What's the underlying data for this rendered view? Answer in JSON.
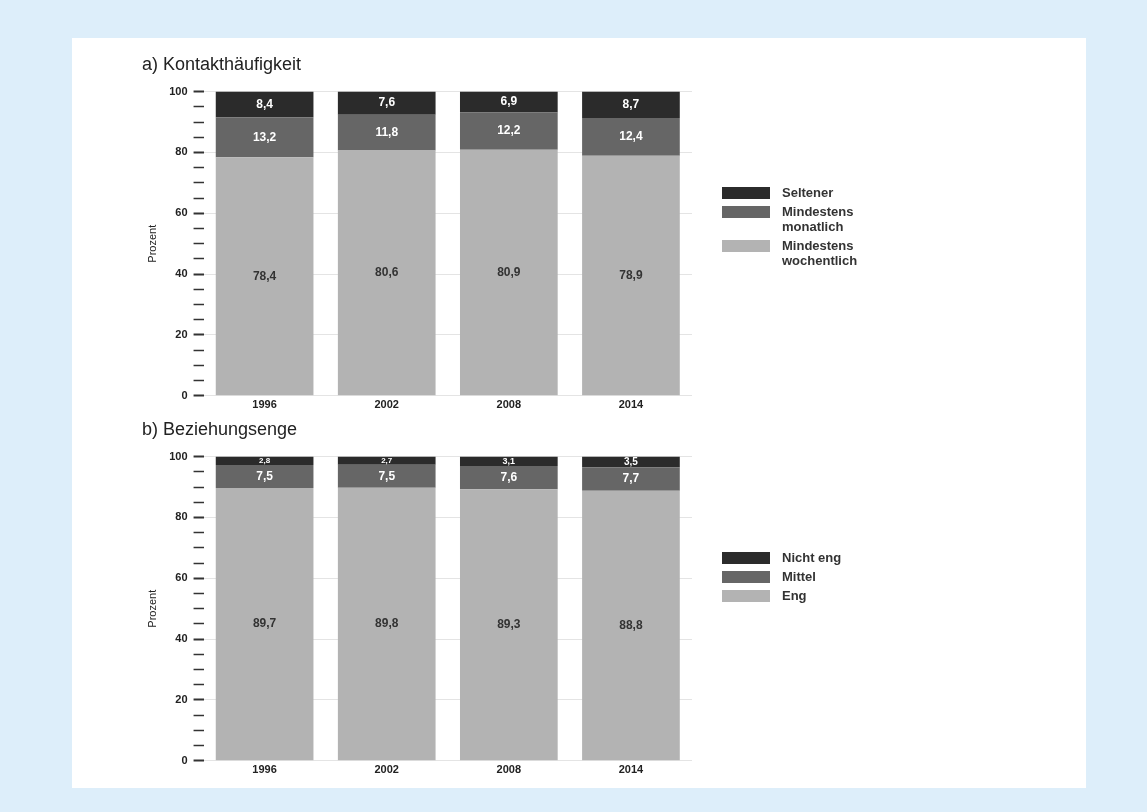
{
  "chart_data": [
    {
      "type": "bar",
      "title": "a) Kontakthäufigkeit",
      "ylabel": "Prozent",
      "categories": [
        "1996",
        "2002",
        "2008",
        "2014"
      ],
      "stacked": true,
      "legend": "right",
      "grid": "y",
      "ylim": [
        0,
        100
      ],
      "yticks": [
        0,
        {
          "value": 5,
          "label": null
        },
        {
          "value": 10,
          "label": null
        },
        {
          "value": 15,
          "label": null
        },
        20,
        {
          "value": 25,
          "label": null
        },
        {
          "value": 30,
          "label": null
        },
        {
          "value": 35,
          "label": null
        },
        40,
        {
          "value": 45,
          "label": null
        },
        {
          "value": 50,
          "label": null
        },
        {
          "value": 55,
          "label": null
        },
        60,
        {
          "value": 65,
          "label": null
        },
        {
          "value": 70,
          "label": null
        },
        {
          "value": 75,
          "label": null
        },
        80,
        {
          "value": 85,
          "label": null
        },
        {
          "value": 90,
          "label": null
        },
        {
          "value": 95,
          "label": null
        },
        100
      ],
      "series": [
        {
          "name": "Mindestens wochentlich",
          "color": "#b3b3b3",
          "values": [
            78.4,
            80.6,
            80.9,
            78.9
          ],
          "value_labels": [
            "78,4",
            "80,6",
            "80,9",
            "78,9"
          ]
        },
        {
          "name": "Mindestens monatlich",
          "color": "#666666",
          "values": [
            13.2,
            11.8,
            12.2,
            12.4
          ],
          "value_labels": [
            "13,2",
            "11,8",
            "12,2",
            "12,4"
          ]
        },
        {
          "name": "Seltener",
          "color": "#2b2b2b",
          "values": [
            8.4,
            7.6,
            6.9,
            8.7
          ],
          "value_labels": [
            "8,4",
            "7,6",
            "6,9",
            "8,7"
          ]
        }
      ]
    },
    {
      "type": "bar",
      "title": "b) Beziehungsenge",
      "ylabel": "Prozent",
      "categories": [
        "1996",
        "2002",
        "2008",
        "2014"
      ],
      "stacked": true,
      "legend": "right",
      "grid": "y",
      "ylim": [
        0,
        100
      ],
      "yticks": [
        0,
        {
          "value": 5,
          "label": null
        },
        {
          "value": 10,
          "label": null
        },
        {
          "value": 15,
          "label": null
        },
        20,
        {
          "value": 25,
          "label": null
        },
        {
          "value": 30,
          "label": null
        },
        {
          "value": 35,
          "label": null
        },
        40,
        {
          "value": 45,
          "label": null
        },
        {
          "value": 50,
          "label": null
        },
        {
          "value": 55,
          "label": null
        },
        60,
        {
          "value": 65,
          "label": null
        },
        {
          "value": 70,
          "label": null
        },
        {
          "value": 75,
          "label": null
        },
        80,
        {
          "value": 85,
          "label": null
        },
        {
          "value": 90,
          "label": null
        },
        {
          "value": 95,
          "label": null
        },
        100
      ],
      "series": [
        {
          "name": "Eng",
          "color": "#b3b3b3",
          "values": [
            89.7,
            89.8,
            89.3,
            88.8
          ],
          "value_labels": [
            "89,7",
            "89,8",
            "89,3",
            "88,8"
          ]
        },
        {
          "name": "Mittel",
          "color": "#666666",
          "values": [
            7.5,
            7.5,
            7.6,
            7.7
          ],
          "value_labels": [
            "7,5",
            "7,5",
            "7,6",
            "7,7"
          ]
        },
        {
          "name": "Nicht eng",
          "color": "#2b2b2b",
          "values": [
            2.8,
            2.7,
            3.1,
            3.5
          ],
          "value_labels": [
            "2,8",
            "2,7",
            "3,1",
            "3,5"
          ]
        }
      ]
    }
  ]
}
